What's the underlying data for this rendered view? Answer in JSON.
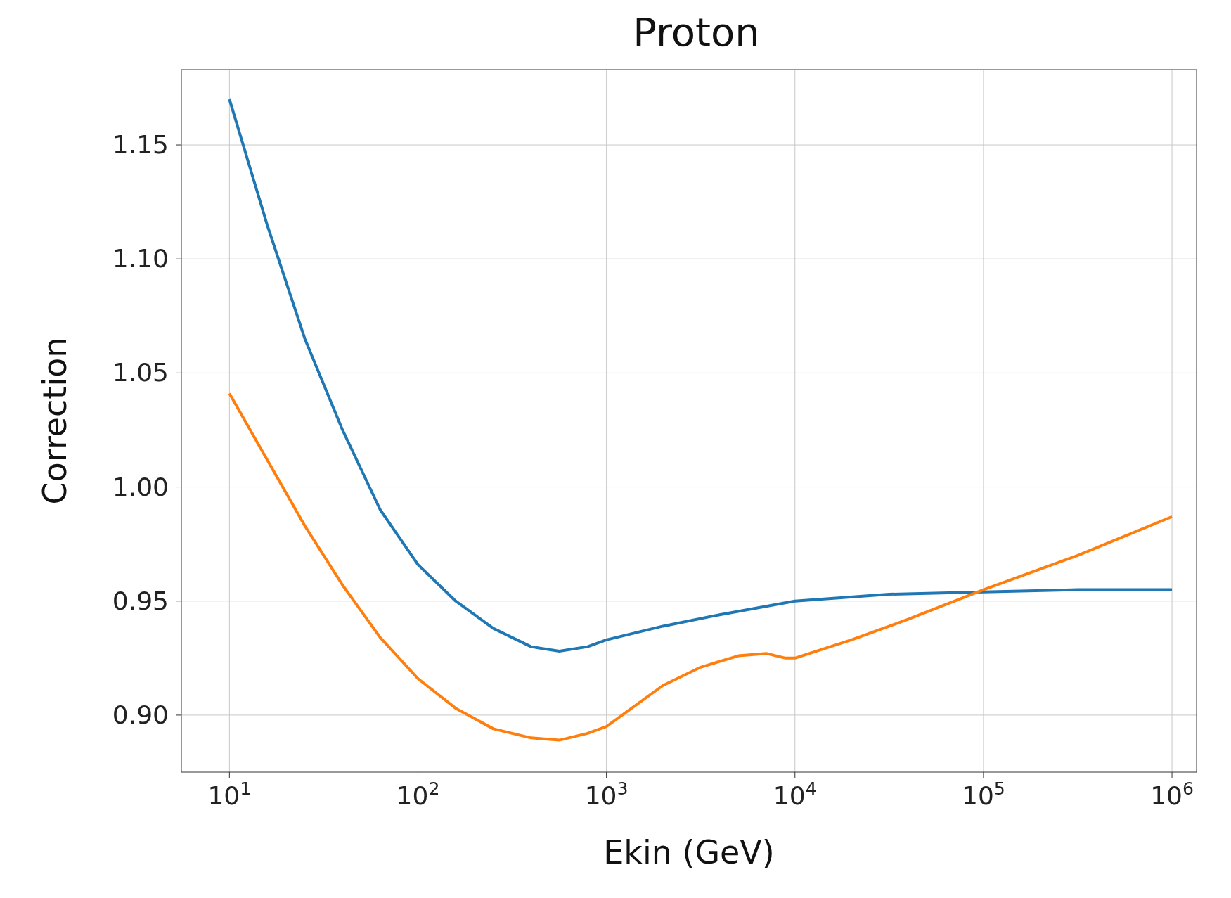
{
  "chart_data": {
    "type": "line",
    "title": "Proton",
    "xlabel": "Ekin (GeV)",
    "ylabel": "Correction",
    "log": "x",
    "grid": true,
    "legend": false,
    "series": [
      {
        "color": "#1f77b4",
        "x": [
          10,
          15.85,
          25.12,
          39.81,
          63.1,
          100,
          158.5,
          251.2,
          398.1,
          562.3,
          794.3,
          1000,
          1995,
          3981,
          10000,
          31623,
          100000,
          316228,
          1000000
        ],
        "values": [
          1.17,
          1.115,
          1.065,
          1.025,
          0.99,
          0.966,
          0.95,
          0.938,
          0.93,
          0.928,
          0.93,
          0.933,
          0.939,
          0.944,
          0.95,
          0.953,
          0.954,
          0.955,
          0.955
        ]
      },
      {
        "color": "#ff7f0e",
        "x": [
          10,
          15.85,
          25.12,
          39.81,
          63.1,
          100,
          158.5,
          251.2,
          398.1,
          562.3,
          794.3,
          1000,
          1413,
          1995,
          3162,
          5012,
          7079,
          8913,
          10000,
          19953,
          39811,
          100000,
          316228,
          1000000
        ],
        "values": [
          1.041,
          1.012,
          0.983,
          0.957,
          0.934,
          0.916,
          0.903,
          0.894,
          0.89,
          0.889,
          0.892,
          0.895,
          0.904,
          0.913,
          0.921,
          0.926,
          0.927,
          0.925,
          0.925,
          0.933,
          0.942,
          0.955,
          0.97,
          0.987
        ]
      }
    ],
    "xlim": [
      5.56,
      1350000
    ],
    "ylim": [
      0.875,
      1.183
    ],
    "xticks": [
      {
        "value": 10,
        "label": "10$^{1}$"
      },
      {
        "value": 100,
        "label": "10$^{2}$"
      },
      {
        "value": 1000,
        "label": "10$^{3}$"
      },
      {
        "value": 10000,
        "label": "10$^{4}$"
      },
      {
        "value": 100000,
        "label": "10$^{5}$"
      },
      {
        "value": 1000000,
        "label": "10$^{6}$"
      }
    ],
    "yticks": [
      {
        "value": 0.9,
        "label": "0.90"
      },
      {
        "value": 0.95,
        "label": "0.95"
      },
      {
        "value": 1.0,
        "label": "1.00"
      },
      {
        "value": 1.05,
        "label": "1.05"
      },
      {
        "value": 1.1,
        "label": "1.10"
      },
      {
        "value": 1.15,
        "label": "1.15"
      }
    ]
  }
}
